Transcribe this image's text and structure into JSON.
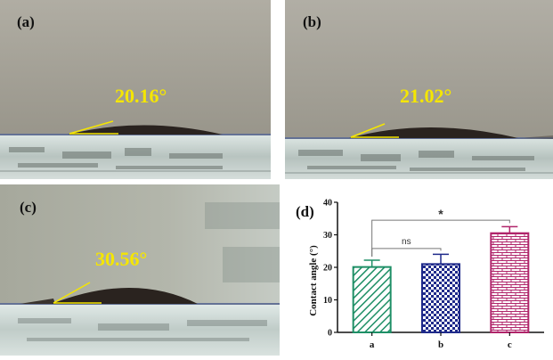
{
  "panels": [
    {
      "label": "(a)",
      "angle_text": "20.16°",
      "contact_angle": 20.16
    },
    {
      "label": "(b)",
      "angle_text": "21.02°",
      "contact_angle": 21.02
    },
    {
      "label": "(c)",
      "angle_text": "30.56°",
      "contact_angle": 30.56
    }
  ],
  "colors": {
    "background_top": "#a9a69b",
    "background_bottom": "#8f8c80",
    "glass": "#c2ccc8",
    "droplet": "#2a231f",
    "angle_line": "#f5e600",
    "bar_a": "#1e8f66",
    "bar_b": "#1f2a8a",
    "bar_c": "#b0246a"
  },
  "chart_data": {
    "type": "bar",
    "panel_label": "(d)",
    "categories": [
      "a",
      "b",
      "c"
    ],
    "values": [
      20.1,
      21.0,
      30.5
    ],
    "errors": [
      2.1,
      3.0,
      2.0
    ],
    "ylabel": "Contact angle (°)",
    "ylim": [
      0,
      40
    ],
    "yticks": [
      "0",
      "10",
      "20",
      "30",
      "40"
    ],
    "significance": [
      {
        "from": "a",
        "to": "b",
        "label": "ns"
      },
      {
        "from": "a",
        "to": "c",
        "label": "*"
      }
    ],
    "grid": false,
    "legend": "none"
  }
}
